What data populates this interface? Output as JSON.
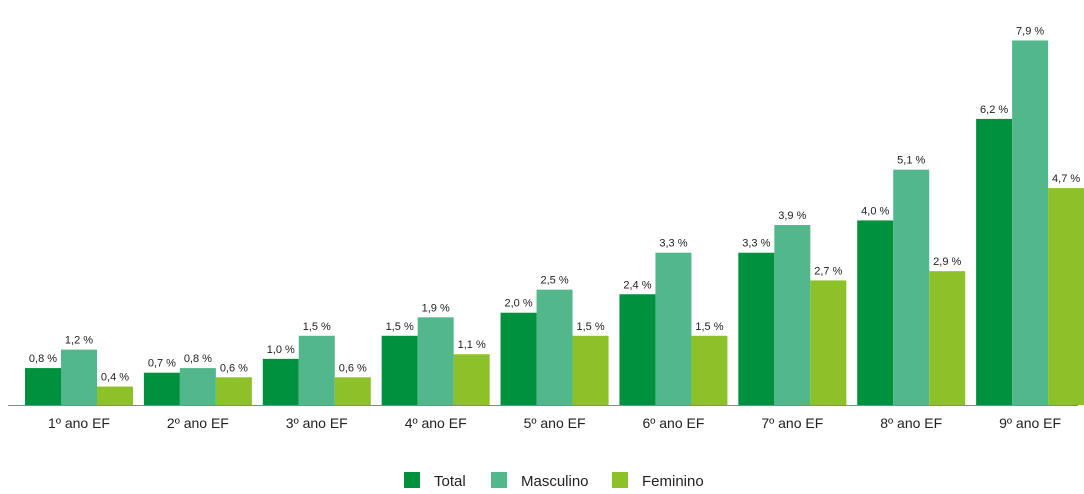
{
  "chart_data": {
    "type": "bar",
    "categories": [
      "1º ano EF",
      "2º ano EF",
      "3º ano EF",
      "4º ano EF",
      "5º ano EF",
      "6º ano EF",
      "7º ano EF",
      "8º ano EF",
      "9º ano EF"
    ],
    "series": [
      {
        "name": "Total",
        "color": "#00913f",
        "values": [
          0.8,
          0.7,
          1.0,
          1.5,
          2.0,
          2.4,
          3.3,
          4.0,
          6.2
        ],
        "labels": [
          "0,8 %",
          "0,7 %",
          "1,0 %",
          "1,5 %",
          "2,0 %",
          "2,4 %",
          "3,3 %",
          "4,0 %",
          "6,2 %"
        ]
      },
      {
        "name": "Masculino",
        "color": "#52b78b",
        "values": [
          1.2,
          0.8,
          1.5,
          1.9,
          2.5,
          3.3,
          3.9,
          5.1,
          7.9
        ],
        "labels": [
          "1,2 %",
          "0,8 %",
          "1,5 %",
          "1,9 %",
          "2,5 %",
          "3,3 %",
          "3,9 %",
          "5,1 %",
          "7,9 %"
        ]
      },
      {
        "name": "Feminino",
        "color": "#8cc12a",
        "values": [
          0.4,
          0.6,
          0.6,
          1.1,
          1.5,
          1.5,
          2.7,
          2.9,
          4.7
        ],
        "labels": [
          "0,4 %",
          "0,6 %",
          "0,6 %",
          "1,1 %",
          "1,5 %",
          "1,5 %",
          "2,7 %",
          "2,9 %",
          "4,7 %"
        ]
      }
    ],
    "ylim": [
      0,
      8.3
    ],
    "grid": false,
    "legend": "bottom-center",
    "axis_color": "#888888"
  }
}
